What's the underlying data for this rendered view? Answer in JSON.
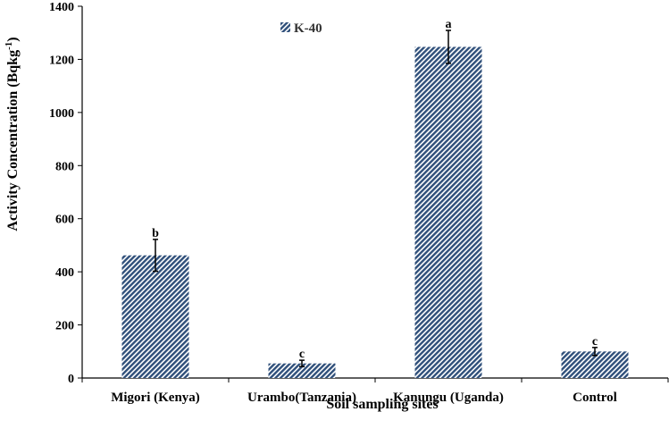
{
  "chart_data": {
    "type": "bar",
    "title": "",
    "xlabel": "Soil sampling sites",
    "ylabel": "Activity Concentration (Bqkg",
    "ylabel_sup": "-1",
    "ylabel_close": ")",
    "ylim": [
      0,
      1400
    ],
    "yticks": [
      0,
      200,
      400,
      600,
      800,
      1000,
      1200,
      1400
    ],
    "categories": [
      "Migori (Kenya)",
      "Urambo(Tanzania)",
      "Kanungu (Uganda)",
      "Control"
    ],
    "series": [
      {
        "name": "K-40",
        "values": [
          462,
          55,
          1247,
          100
        ],
        "error": [
          60,
          12,
          62,
          15
        ],
        "labels": [
          "b",
          "c",
          "a",
          "c"
        ]
      }
    ],
    "legend": "top-left",
    "grid": false,
    "colors": {
      "bar": "#2f4f7a",
      "hatch_bg": "#ffffff"
    }
  }
}
